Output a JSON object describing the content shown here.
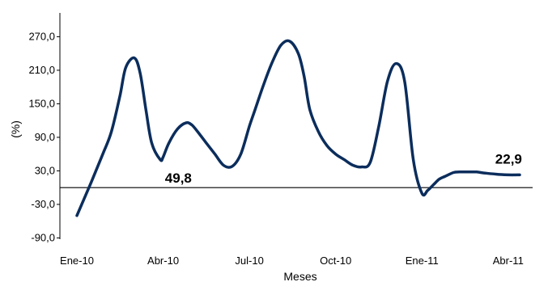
{
  "chart_data": {
    "type": "line",
    "title": "",
    "xlabel": "Meses",
    "ylabel": "(%)",
    "ylim": [
      -90,
      300
    ],
    "yticks": [
      -90,
      -30,
      30,
      90,
      150,
      210,
      270
    ],
    "ytick_labels": [
      "-90,0",
      "-30,0",
      "30,0",
      "90,0",
      "150,0",
      "210,0",
      "270,0"
    ],
    "xticks": [
      0,
      3,
      6,
      9,
      12,
      15
    ],
    "xtick_labels": [
      "Ene-10",
      "Abr-10",
      "Jul-10",
      "Oct-10",
      "Ene-11",
      "Abr-11"
    ],
    "x_unit": "months since Ene-10",
    "grid": false,
    "line_color": "#0b2d5c",
    "series": [
      {
        "name": "",
        "x": [
          0,
          0.5,
          0.9,
          1.2,
          1.5,
          1.7,
          2.0,
          2.2,
          2.4,
          2.6,
          2.9,
          3.0,
          3.2,
          3.5,
          3.8,
          4.0,
          4.2,
          4.5,
          4.8,
          5.1,
          5.4,
          5.7,
          6.0,
          6.2,
          6.5,
          6.8,
          7.1,
          7.4,
          7.7,
          7.9,
          8.1,
          8.4,
          8.7,
          9.0,
          9.3,
          9.6,
          9.9,
          10.2,
          10.5,
          10.8,
          11.1,
          11.4,
          11.7,
          12.0,
          12.2,
          12.4,
          12.6,
          12.8,
          13.1,
          13.3,
          13.6,
          13.9,
          14.2,
          14.6,
          15.0,
          15.4
        ],
        "values": [
          -50,
          10,
          60,
          100,
          165,
          215,
          232,
          205,
          140,
          80,
          50,
          55,
          80,
          105,
          116,
          112,
          100,
          80,
          60,
          40,
          38,
          60,
          110,
          140,
          185,
          225,
          255,
          262,
          240,
          200,
          140,
          100,
          75,
          60,
          50,
          40,
          37,
          45,
          110,
          190,
          222,
          190,
          50,
          -10,
          -5,
          5,
          15,
          20,
          27,
          28,
          28,
          28,
          26,
          24,
          22.9,
          22.9
        ],
        "point_annotations": [
          {
            "x": 2.95,
            "y": 49.8,
            "text": "49,8",
            "position": "below-right"
          },
          {
            "x": 15.0,
            "y": 22.9,
            "text": "22,9",
            "position": "above"
          }
        ]
      }
    ]
  }
}
